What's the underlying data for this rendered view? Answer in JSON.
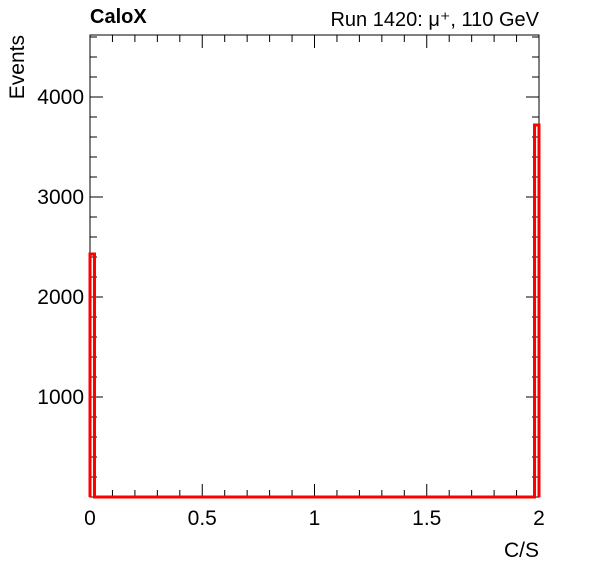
{
  "header": {
    "left_label": "CaloX",
    "right_label": "Run 1420: μ⁺, 110 GeV"
  },
  "chart_data": {
    "type": "histogram",
    "xlabel": "C/S",
    "ylabel": "Events",
    "xlim": [
      0,
      2
    ],
    "ylim": [
      0,
      4620
    ],
    "x_ticks": [
      0,
      0.5,
      1,
      1.5,
      2
    ],
    "x_tick_labels": [
      "0",
      "0.5",
      "1",
      "1.5",
      "2"
    ],
    "y_ticks": [
      1000,
      2000,
      3000,
      4000
    ],
    "y_tick_labels": [
      "1000",
      "2000",
      "3000",
      "4000"
    ],
    "bin_width": 0.02,
    "line_color": "#ff0000",
    "values": [
      2430,
      0,
      0,
      0,
      0,
      0,
      0,
      0,
      0,
      0,
      0,
      0,
      0,
      0,
      0,
      0,
      0,
      0,
      0,
      0,
      0,
      0,
      0,
      0,
      0,
      0,
      0,
      0,
      0,
      0,
      0,
      0,
      0,
      0,
      0,
      0,
      0,
      0,
      0,
      0,
      0,
      0,
      0,
      0,
      0,
      0,
      0,
      0,
      0,
      0,
      0,
      0,
      0,
      0,
      0,
      0,
      0,
      0,
      0,
      0,
      0,
      0,
      0,
      0,
      0,
      0,
      0,
      0,
      0,
      0,
      0,
      0,
      0,
      0,
      0,
      0,
      0,
      0,
      0,
      0,
      0,
      0,
      0,
      0,
      0,
      0,
      0,
      0,
      0,
      0,
      0,
      0,
      0,
      0,
      0,
      0,
      0,
      0,
      0,
      3720
    ]
  }
}
